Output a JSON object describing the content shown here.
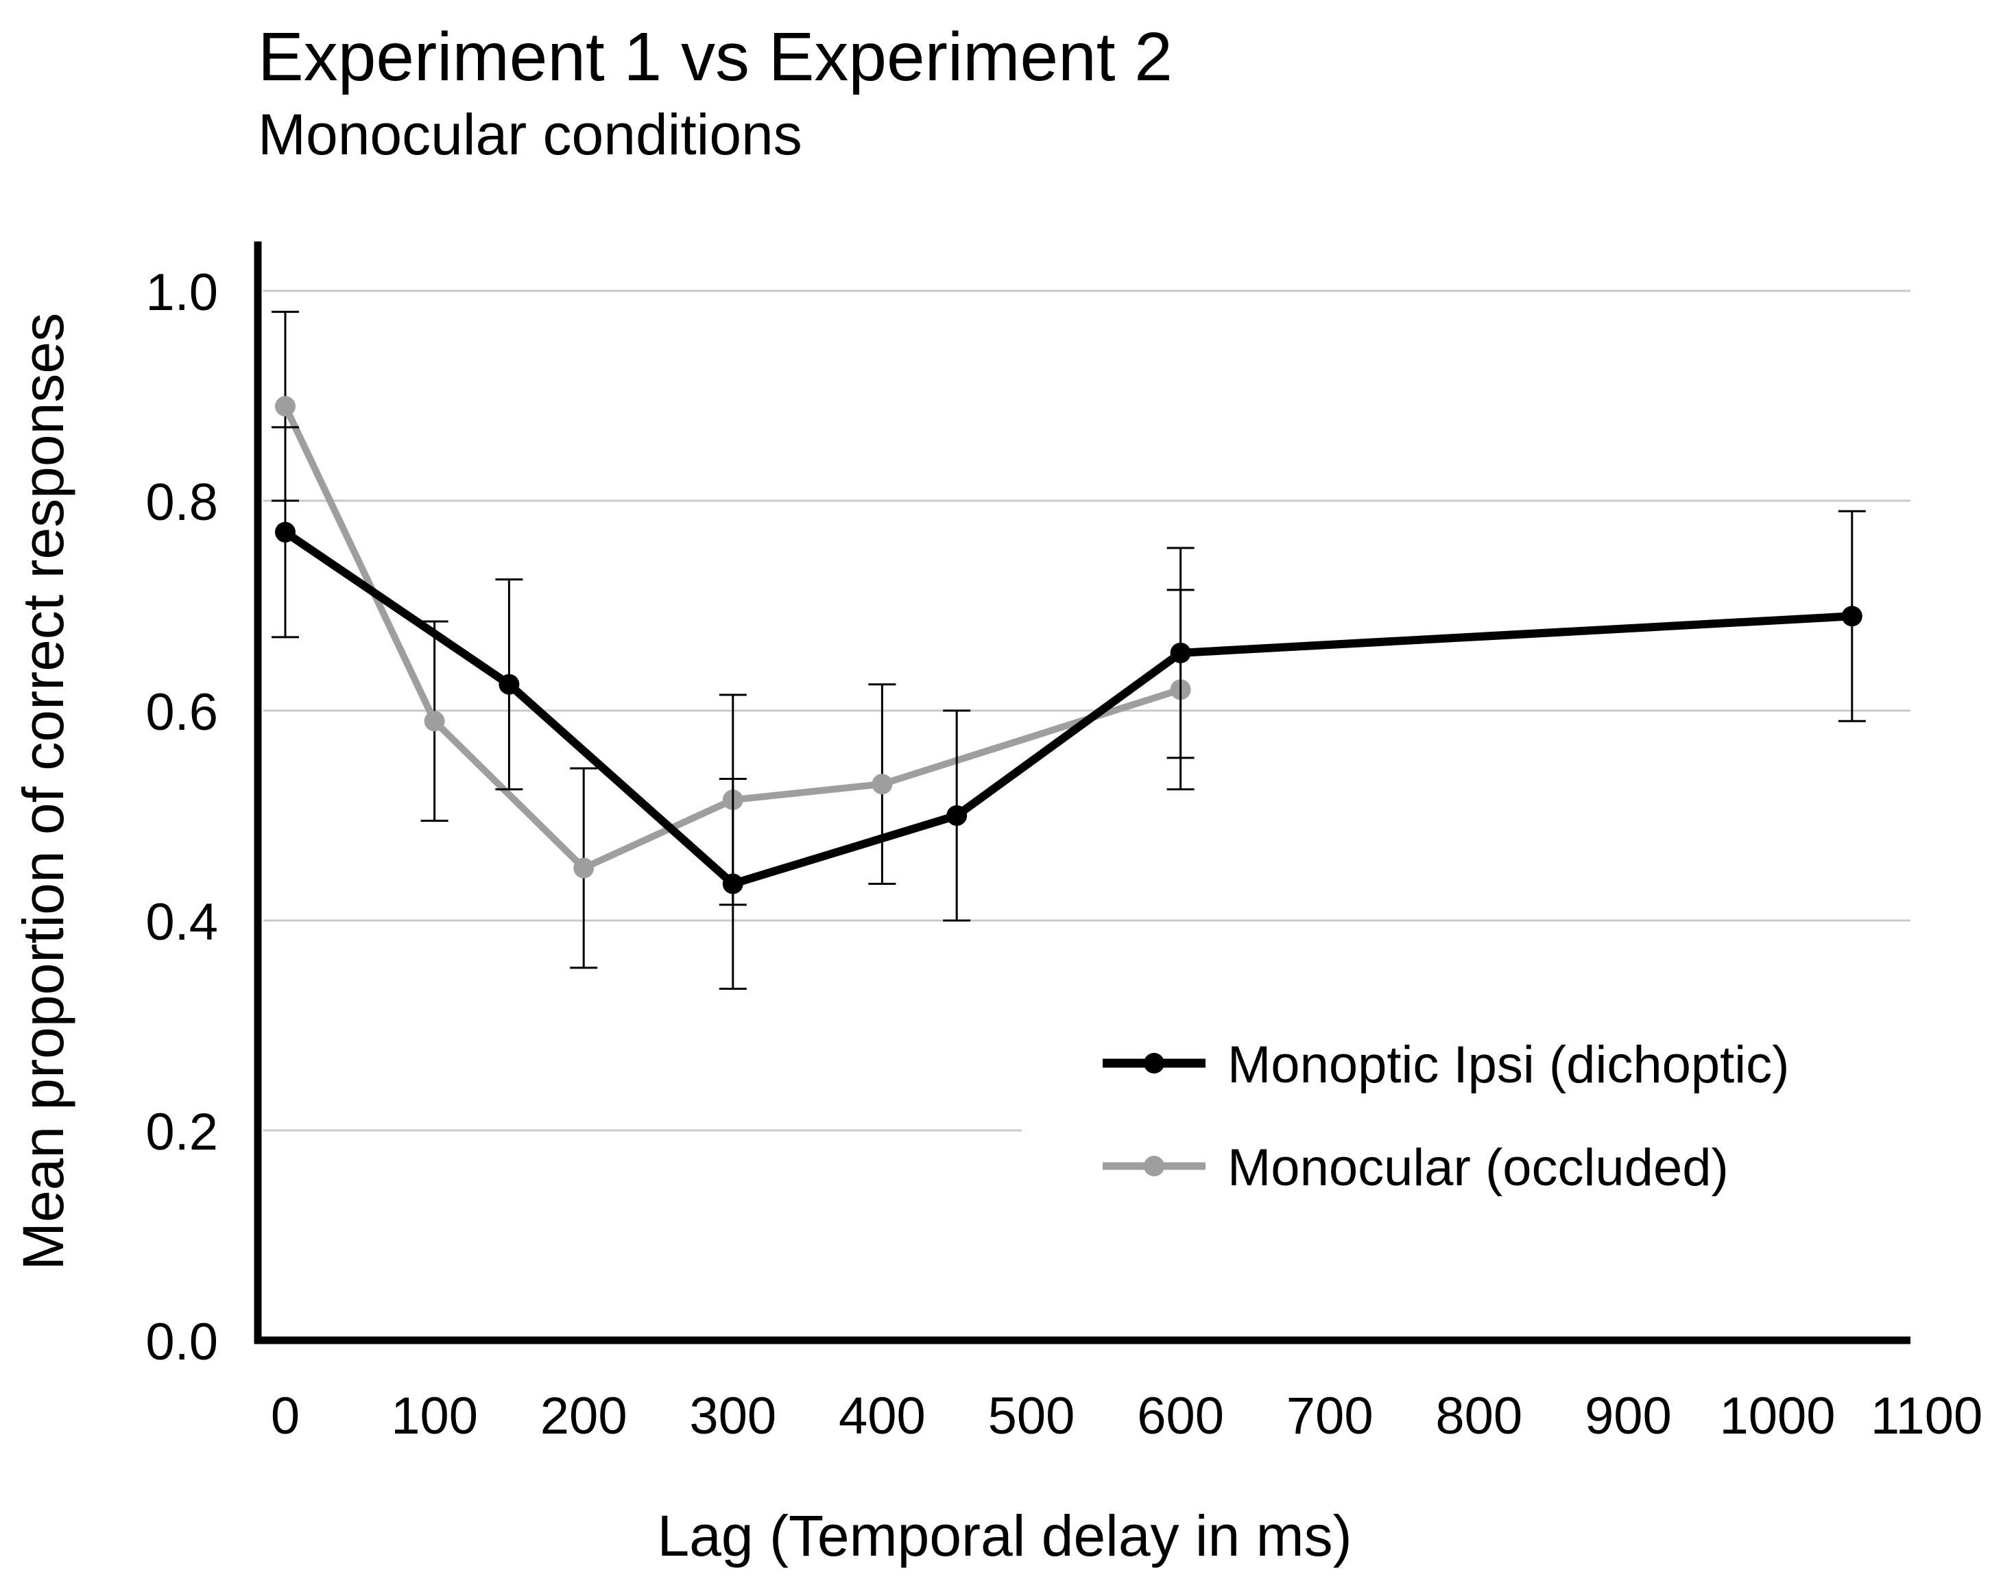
{
  "chart_data": {
    "type": "line",
    "title": "Experiment 1 vs Experiment 2",
    "subtitle": "Monocular conditions",
    "xlabel": "Lag (Temporal delay in ms)",
    "ylabel": "Mean proportion of correct responses",
    "xlim": [
      0,
      1100
    ],
    "ylim": [
      0,
      1.0
    ],
    "xticks": [
      "0",
      "100",
      "200",
      "300",
      "400",
      "500",
      "600",
      "700",
      "800",
      "900",
      "1000",
      "1100"
    ],
    "xtick_values": [
      0,
      100,
      200,
      300,
      400,
      500,
      600,
      700,
      800,
      900,
      1000,
      1100
    ],
    "yticks": [
      "0.0",
      "0.2",
      "0.4",
      "0.6",
      "0.8",
      "1.0"
    ],
    "ytick_values": [
      0,
      0.2,
      0.4,
      0.6,
      0.8,
      1.0
    ],
    "grid": true,
    "legend_position": "bottom-right",
    "series": [
      {
        "name": "Monoptic Ipsi (dichoptic)",
        "color": "#000000",
        "x": [
          0,
          150,
          300,
          450,
          600,
          1050
        ],
        "y": [
          0.77,
          0.625,
          0.435,
          0.5,
          0.655,
          0.69
        ],
        "error": [
          0.1,
          0.1,
          0.1,
          0.1,
          0.1,
          0.1
        ]
      },
      {
        "name": "Monocular (occluded)",
        "color": "#9e9e9e",
        "x": [
          0,
          100,
          200,
          300,
          400,
          600
        ],
        "y": [
          0.89,
          0.59,
          0.45,
          0.515,
          0.53,
          0.62
        ],
        "error": [
          0.09,
          0.095,
          0.095,
          0.1,
          0.095,
          0.095
        ]
      }
    ]
  }
}
